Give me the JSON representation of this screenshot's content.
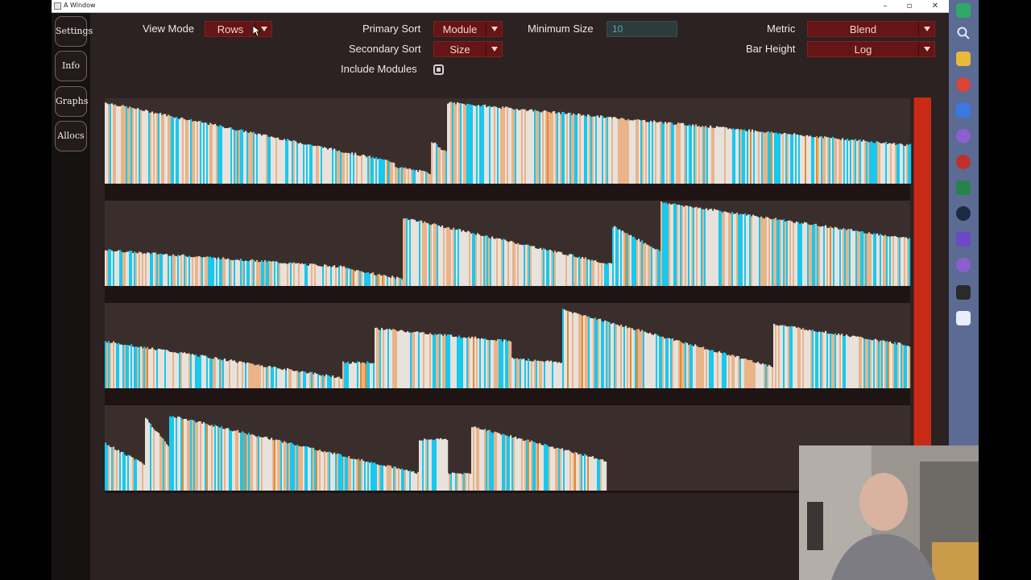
{
  "window": {
    "title": "A Window"
  },
  "sidebar": {
    "tabs": [
      {
        "label": "Settings"
      },
      {
        "label": "Info"
      },
      {
        "label": "Graphs"
      },
      {
        "label": "Allocs"
      }
    ]
  },
  "controls": {
    "view_mode": {
      "label": "View Mode",
      "value": "Rows"
    },
    "primary_sort": {
      "label": "Primary Sort",
      "value": "Module"
    },
    "secondary_sort": {
      "label": "Secondary Sort",
      "value": "Size"
    },
    "minimum_size": {
      "label": "Minimum Size",
      "value": "10"
    },
    "include_modules": {
      "label": "Include Modules",
      "checked": true
    },
    "metric": {
      "label": "Metric",
      "value": "Blend"
    },
    "bar_height": {
      "label": "Bar Height",
      "value": "Log"
    }
  },
  "colors": {
    "background": "#2b2221",
    "dropdown": "#651515",
    "scrollbar": "#c82a16",
    "bar_cyan": "#18c8ee",
    "bar_tan": "#e9b489",
    "bar_orange": "#e48a2d",
    "bar_cream": "#e8e2dd"
  }
}
